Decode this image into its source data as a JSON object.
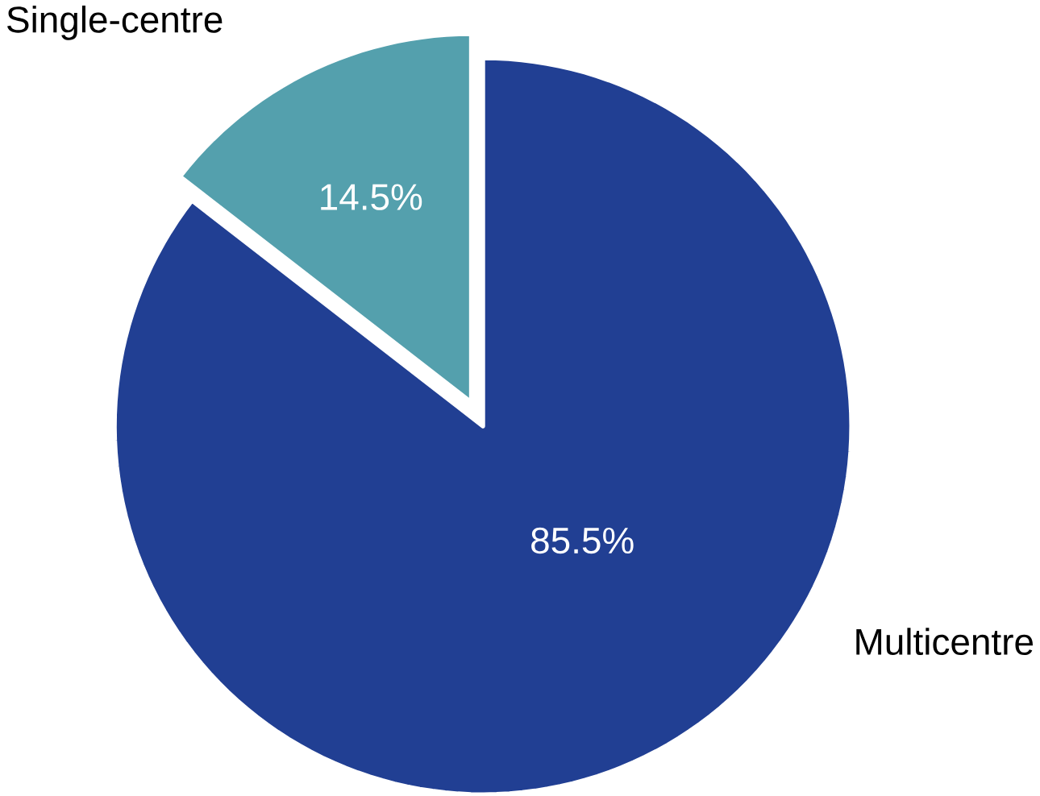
{
  "chart_data": {
    "type": "pie",
    "categories": [
      "Multicentre",
      "Single-centre"
    ],
    "values": [
      85.5,
      14.5
    ],
    "colors": [
      "#213f93",
      "#54a0ad"
    ],
    "value_labels": [
      "85.5%",
      "14.5%"
    ]
  }
}
